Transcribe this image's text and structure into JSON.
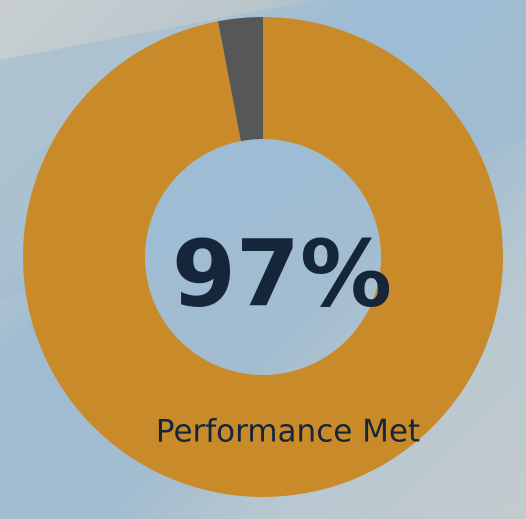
{
  "chart_data": {
    "type": "donut",
    "categories": [
      "Performance Met",
      null
    ],
    "values": [
      97,
      3
    ],
    "value_labels": [
      "97%",
      null
    ],
    "colors": [
      "#c98b2a",
      "#555759"
    ]
  }
}
